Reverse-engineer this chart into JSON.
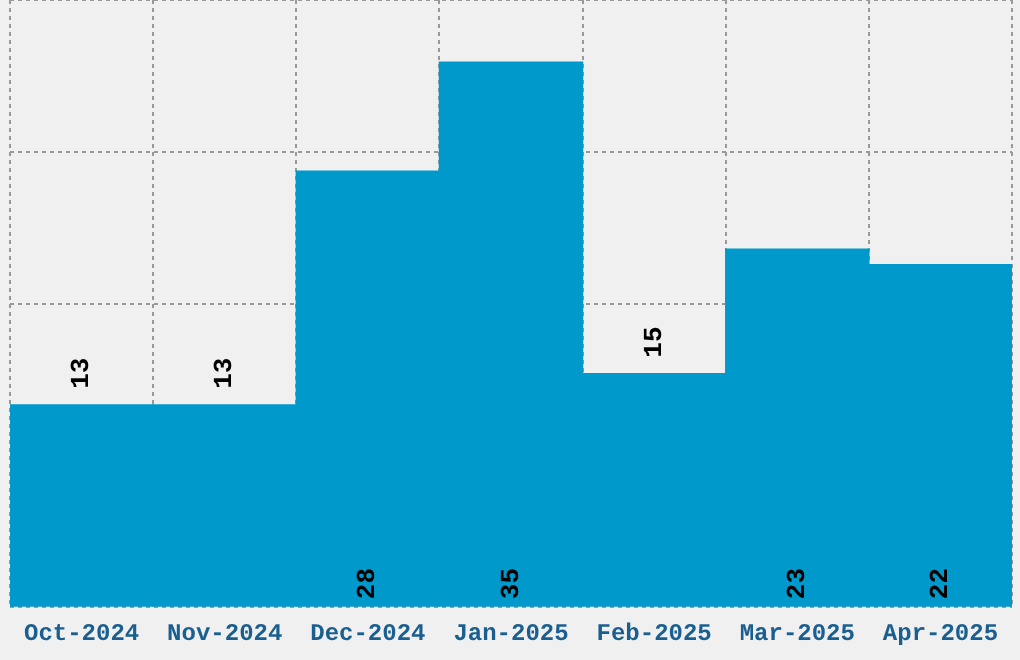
{
  "chart_data": {
    "type": "bar",
    "categories": [
      "Oct-2024",
      "Nov-2024",
      "Dec-2024",
      "Jan-2025",
      "Feb-2025",
      "Mar-2025",
      "Apr-2025"
    ],
    "values": [
      13,
      13,
      28,
      35,
      15,
      23,
      22
    ],
    "color": "#0099cc",
    "data_labels": true,
    "grid": true,
    "ylim": [
      0,
      39
    ]
  }
}
